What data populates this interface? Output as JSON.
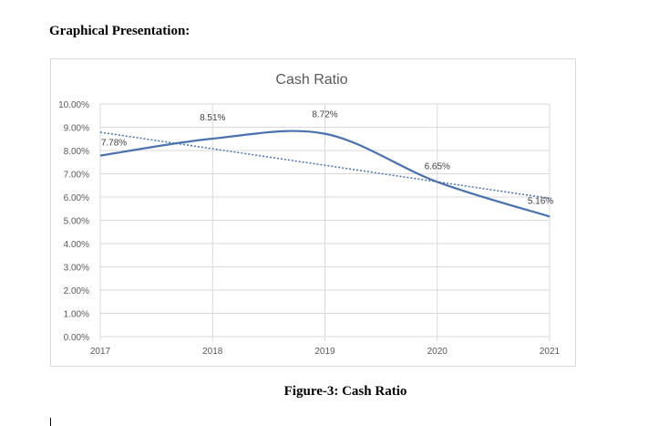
{
  "document": {
    "heading": "Graphical Presentation:",
    "caption": "Figure-3: Cash Ratio"
  },
  "chart_data": {
    "type": "line",
    "title": "Cash Ratio",
    "categories": [
      "2017",
      "2018",
      "2019",
      "2020",
      "2021"
    ],
    "series": [
      {
        "values": [
          7.78,
          8.51,
          8.72,
          6.65,
          5.16
        ],
        "data_labels": [
          "7.78%",
          "8.51%",
          "8.72%",
          "6.65%",
          "5.16%"
        ],
        "smooth": true,
        "color": "#4a72b0"
      }
    ],
    "trendline": {
      "type": "linear",
      "style": "dotted",
      "color": "#4a72b0"
    },
    "ylim": [
      0,
      10
    ],
    "yticks": [
      "0.00%",
      "1.00%",
      "2.00%",
      "3.00%",
      "4.00%",
      "5.00%",
      "6.00%",
      "7.00%",
      "8.00%",
      "9.00%",
      "10.00%"
    ],
    "grid": true,
    "legend": "none"
  }
}
